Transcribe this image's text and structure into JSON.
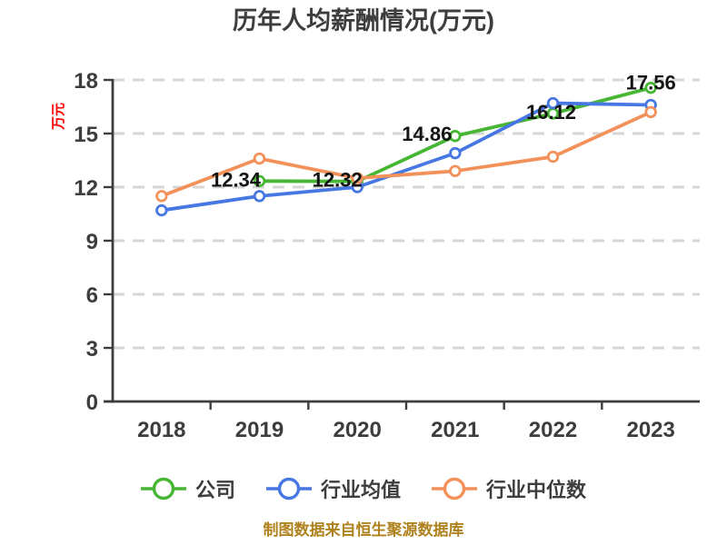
{
  "chart_data": {
    "type": "line",
    "title": "历年人均薪酬情况(万元)",
    "categories": [
      "2018",
      "2019",
      "2020",
      "2021",
      "2022",
      "2023"
    ],
    "xlabel": "",
    "ylabel": "万元",
    "ylim": [
      0,
      18
    ],
    "yticks": [
      0,
      3,
      6,
      9,
      12,
      15,
      18
    ],
    "grid": "horizontal-dashed",
    "legend_position": "bottom",
    "series": [
      {
        "name": "公司",
        "color": "#46b633",
        "values": [
          null,
          12.34,
          12.32,
          14.86,
          16.12,
          17.56
        ],
        "data_labels": [
          null,
          "12.34",
          "12.32",
          "14.86",
          "16.12",
          "17.56"
        ]
      },
      {
        "name": "行业均值",
        "color": "#4677e2",
        "values": [
          10.7,
          11.5,
          12.0,
          13.9,
          16.7,
          16.6
        ]
      },
      {
        "name": "行业中位数",
        "color": "#f2925a",
        "values": [
          11.5,
          13.6,
          12.5,
          12.9,
          13.7,
          16.2
        ]
      }
    ],
    "style": {
      "title_color": "#3d3d3d",
      "axis_color": "#3d3d3d",
      "tick_color": "#3d3d3d",
      "grid_color": "#d6d6d6",
      "data_label_color": "#141414",
      "ylabel_color": "#ff0000",
      "marker_fill": "#ffffff"
    }
  },
  "footer": {
    "text": "制图数据来自恒生聚源数据库",
    "color": "#af821e"
  }
}
